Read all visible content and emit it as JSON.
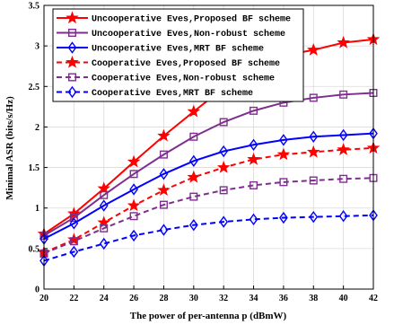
{
  "chart_data": {
    "type": "line",
    "xlabel": "The power of per-antenna p (dBmW)",
    "ylabel": "Minimal ASR (bits/s/Hz)",
    "x": [
      20,
      22,
      24,
      26,
      28,
      30,
      32,
      34,
      36,
      38,
      40,
      42
    ],
    "xlim": [
      20,
      42
    ],
    "ylim": [
      0,
      3.5
    ],
    "xticks": [
      "20",
      "22",
      "24",
      "26",
      "28",
      "30",
      "32",
      "34",
      "36",
      "38",
      "40",
      "42"
    ],
    "yticks": [
      "0",
      "0.5",
      "1",
      "1.5",
      "2",
      "2.5",
      "3",
      "3.5"
    ],
    "grid": true,
    "legend_position": "top-left",
    "series": [
      {
        "name": "Uncooperative Eves,Proposed BF scheme",
        "color": "#ff0000",
        "marker": "star",
        "dash": "solid",
        "values": [
          0.68,
          0.93,
          1.24,
          1.57,
          1.89,
          2.19,
          2.48,
          2.72,
          2.88,
          2.95,
          3.04,
          3.08
        ]
      },
      {
        "name": "Uncooperative Eves,Non-robust scheme",
        "color": "#7e2f8e",
        "marker": "square",
        "dash": "solid",
        "values": [
          0.66,
          0.88,
          1.16,
          1.42,
          1.66,
          1.88,
          2.06,
          2.2,
          2.3,
          2.36,
          2.4,
          2.42
        ]
      },
      {
        "name": "Uncooperative Eves,MRT BF scheme",
        "color": "#0000ff",
        "marker": "diamond",
        "dash": "solid",
        "values": [
          0.62,
          0.81,
          1.03,
          1.23,
          1.42,
          1.58,
          1.7,
          1.78,
          1.84,
          1.88,
          1.9,
          1.92
        ]
      },
      {
        "name": "Cooperative Eves,Proposed BF scheme",
        "color": "#ff0000",
        "marker": "star",
        "dash": "dashed",
        "values": [
          0.45,
          0.61,
          0.82,
          1.03,
          1.22,
          1.38,
          1.5,
          1.6,
          1.66,
          1.69,
          1.72,
          1.74
        ]
      },
      {
        "name": "Cooperative Eves,Non-robust scheme",
        "color": "#7e2f8e",
        "marker": "square",
        "dash": "dashed",
        "values": [
          0.44,
          0.59,
          0.75,
          0.9,
          1.04,
          1.14,
          1.22,
          1.28,
          1.32,
          1.34,
          1.36,
          1.37
        ]
      },
      {
        "name": "Cooperative Eves,MRT BF scheme",
        "color": "#0000ff",
        "marker": "diamond",
        "dash": "dashed",
        "values": [
          0.35,
          0.46,
          0.56,
          0.66,
          0.73,
          0.79,
          0.83,
          0.86,
          0.88,
          0.89,
          0.9,
          0.91
        ]
      }
    ]
  }
}
